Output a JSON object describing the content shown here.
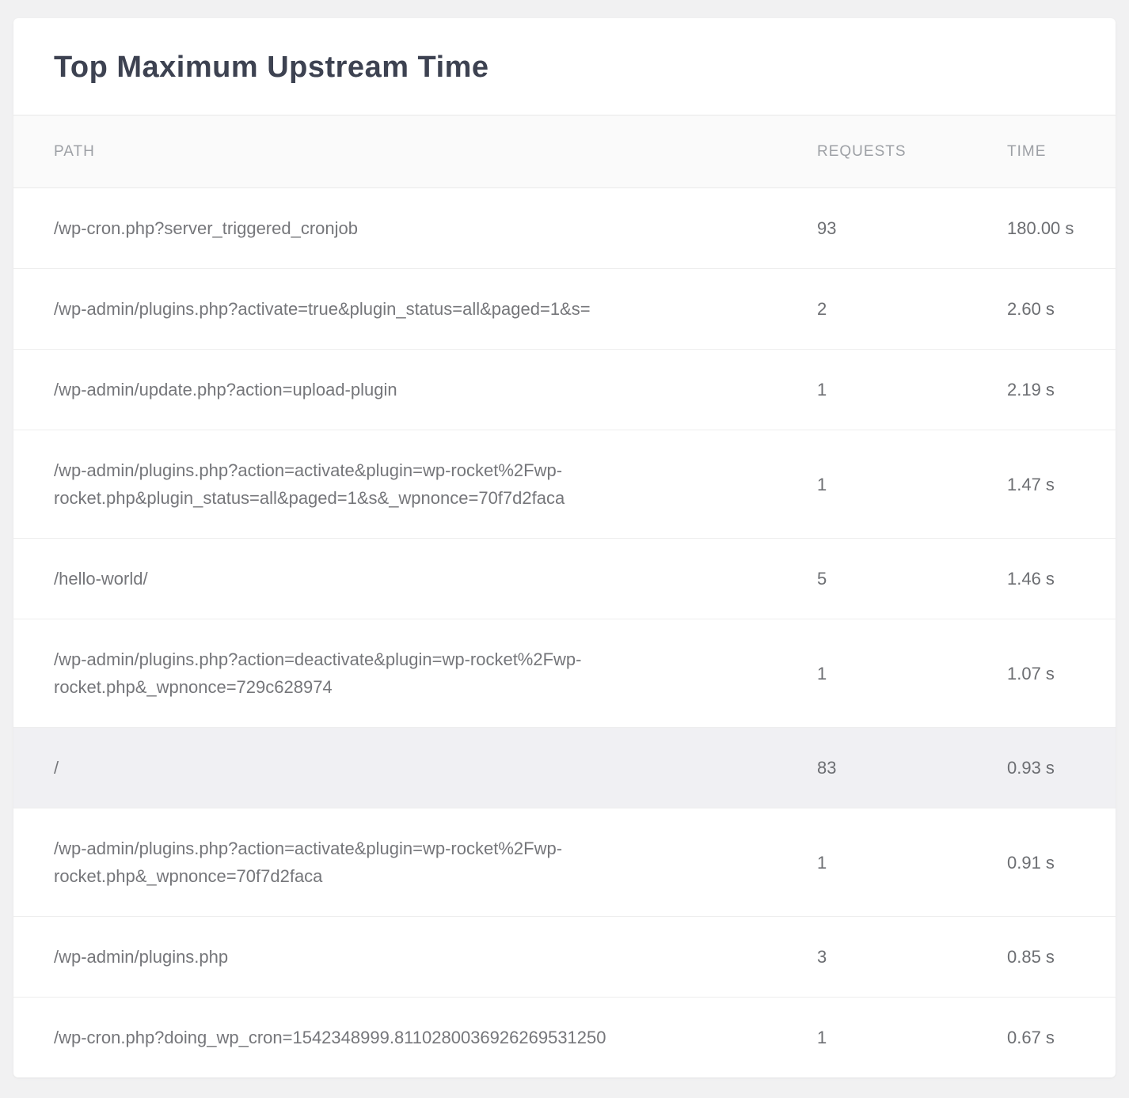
{
  "card": {
    "title": "Top Maximum Upstream Time"
  },
  "table": {
    "columns": [
      {
        "key": "path",
        "label": "PATH"
      },
      {
        "key": "requests",
        "label": "REQUESTS"
      },
      {
        "key": "time",
        "label": "TIME"
      }
    ],
    "rows": [
      {
        "path": "/wp-cron.php?server_triggered_cronjob",
        "requests": "93",
        "time": "180.00 s",
        "highlighted": false
      },
      {
        "path": "/wp-admin/plugins.php?activate=true&plugin_status=all&paged=1&s=",
        "requests": "2",
        "time": "2.60 s",
        "highlighted": false
      },
      {
        "path": "/wp-admin/update.php?action=upload-plugin",
        "requests": "1",
        "time": "2.19 s",
        "highlighted": false
      },
      {
        "path": "/wp-admin/plugins.php?action=activate&plugin=wp-rocket%2Fwp-rocket.php&plugin_status=all&paged=1&s&_wpnonce=70f7d2faca",
        "requests": "1",
        "time": "1.47 s",
        "highlighted": false
      },
      {
        "path": "/hello-world/",
        "requests": "5",
        "time": "1.46 s",
        "highlighted": false
      },
      {
        "path": "/wp-admin/plugins.php?action=deactivate&plugin=wp-rocket%2Fwp-rocket.php&_wpnonce=729c628974",
        "requests": "1",
        "time": "1.07 s",
        "highlighted": false
      },
      {
        "path": "/",
        "requests": "83",
        "time": "0.93 s",
        "highlighted": true
      },
      {
        "path": "/wp-admin/plugins.php?action=activate&plugin=wp-rocket%2Fwp-rocket.php&_wpnonce=70f7d2faca",
        "requests": "1",
        "time": "0.91 s",
        "highlighted": false
      },
      {
        "path": "/wp-admin/plugins.php",
        "requests": "3",
        "time": "0.85 s",
        "highlighted": false
      },
      {
        "path": "/wp-cron.php?doing_wp_cron=1542348999.8110280036926269531250",
        "requests": "1",
        "time": "0.67 s",
        "highlighted": false
      }
    ]
  },
  "colors": {
    "page_background": "#f1f1f2",
    "card_background": "#ffffff",
    "title_text": "#3d4251",
    "header_background": "#fafafa",
    "header_text": "#9da0a5",
    "body_text": "#75767a",
    "highlight_row_background": "#f0f0f3",
    "row_divider": "#eeeeee"
  }
}
